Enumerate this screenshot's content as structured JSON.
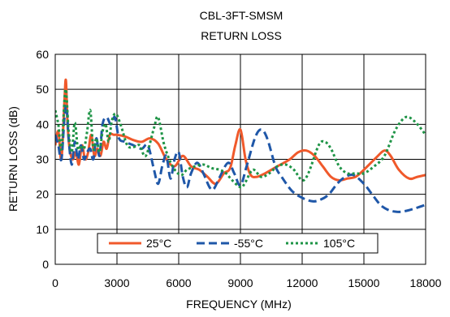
{
  "chart_data": {
    "type": "line",
    "title": "CBL-3FT-SMSM",
    "subtitle": "RETURN LOSS",
    "xlabel": "FREQUENCY (MHz)",
    "ylabel": "RETURN LOSS (dB)",
    "xlim": [
      0,
      18000
    ],
    "ylim": [
      0,
      60
    ],
    "x_ticks": [
      "0",
      "3000",
      "6000",
      "9000",
      "12000",
      "15000",
      "18000"
    ],
    "y_ticks": [
      "0",
      "10",
      "20",
      "30",
      "40",
      "50",
      "60"
    ],
    "grid": true,
    "legend_position": "bottom-inside",
    "series": [
      {
        "name": "25°C",
        "color": "#f0592b",
        "dash": "solid",
        "points": [
          [
            0,
            34
          ],
          [
            150,
            38
          ],
          [
            300,
            30
          ],
          [
            450,
            47
          ],
          [
            520,
            52.5
          ],
          [
            600,
            40
          ],
          [
            700,
            33
          ],
          [
            850,
            30
          ],
          [
            1000,
            32
          ],
          [
            1150,
            28.5
          ],
          [
            1300,
            34
          ],
          [
            1450,
            30
          ],
          [
            1600,
            32
          ],
          [
            1750,
            37
          ],
          [
            1900,
            31
          ],
          [
            2050,
            33
          ],
          [
            2200,
            31
          ],
          [
            2350,
            35
          ],
          [
            2500,
            33
          ],
          [
            2650,
            37
          ],
          [
            2850,
            37
          ],
          [
            3000,
            37
          ],
          [
            3400,
            36.5
          ],
          [
            3800,
            35.5
          ],
          [
            4200,
            35
          ],
          [
            4600,
            36
          ],
          [
            5000,
            34.5
          ],
          [
            5400,
            30
          ],
          [
            5800,
            28
          ],
          [
            6200,
            31
          ],
          [
            6600,
            28
          ],
          [
            7000,
            27
          ],
          [
            7400,
            25
          ],
          [
            7800,
            23
          ],
          [
            8200,
            26
          ],
          [
            8500,
            27.5
          ],
          [
            8750,
            34
          ],
          [
            9000,
            38.5
          ],
          [
            9250,
            30
          ],
          [
            9500,
            25.5
          ],
          [
            9800,
            25
          ],
          [
            10200,
            26
          ],
          [
            10800,
            28
          ],
          [
            11400,
            30
          ],
          [
            11800,
            32
          ],
          [
            12200,
            32.5
          ],
          [
            12600,
            31
          ],
          [
            13000,
            28
          ],
          [
            13400,
            25
          ],
          [
            13800,
            24
          ],
          [
            14200,
            24.5
          ],
          [
            14600,
            25
          ],
          [
            15000,
            27
          ],
          [
            15600,
            30.5
          ],
          [
            16000,
            32.5
          ],
          [
            16300,
            31
          ],
          [
            16700,
            27
          ],
          [
            17200,
            24.5
          ],
          [
            17600,
            25
          ],
          [
            18000,
            25.5
          ]
        ]
      },
      {
        "name": "-55°C",
        "color": "#1f57a8",
        "dash": "long-dash",
        "points": [
          [
            0,
            37
          ],
          [
            150,
            34
          ],
          [
            300,
            30
          ],
          [
            450,
            42
          ],
          [
            550,
            45
          ],
          [
            650,
            36
          ],
          [
            800,
            28.5
          ],
          [
            950,
            35
          ],
          [
            1100,
            30
          ],
          [
            1250,
            34
          ],
          [
            1400,
            30
          ],
          [
            1550,
            32
          ],
          [
            1700,
            33
          ],
          [
            1850,
            30
          ],
          [
            2000,
            36
          ],
          [
            2150,
            31
          ],
          [
            2300,
            40
          ],
          [
            2500,
            42
          ],
          [
            2700,
            40
          ],
          [
            2900,
            42
          ],
          [
            3100,
            36
          ],
          [
            3400,
            35
          ],
          [
            3800,
            34
          ],
          [
            4200,
            33
          ],
          [
            4500,
            34
          ],
          [
            4800,
            27
          ],
          [
            5000,
            23
          ],
          [
            5200,
            28
          ],
          [
            5400,
            31
          ],
          [
            5600,
            24.5
          ],
          [
            5800,
            30
          ],
          [
            6000,
            32
          ],
          [
            6200,
            25
          ],
          [
            6400,
            22
          ],
          [
            6600,
            26
          ],
          [
            6900,
            29
          ],
          [
            7200,
            26
          ],
          [
            7500,
            22
          ],
          [
            7700,
            21.5
          ],
          [
            8000,
            25
          ],
          [
            8400,
            29
          ],
          [
            8700,
            26
          ],
          [
            9000,
            22.5
          ],
          [
            9300,
            28
          ],
          [
            9700,
            36
          ],
          [
            10000,
            38.5
          ],
          [
            10300,
            36
          ],
          [
            10700,
            28
          ],
          [
            11000,
            25
          ],
          [
            11500,
            21
          ],
          [
            12000,
            19
          ],
          [
            12500,
            18
          ],
          [
            12900,
            18.5
          ],
          [
            13300,
            20
          ],
          [
            13700,
            23
          ],
          [
            14100,
            25
          ],
          [
            14500,
            25.5
          ],
          [
            15000,
            23
          ],
          [
            15400,
            20
          ],
          [
            15800,
            17
          ],
          [
            16200,
            15.5
          ],
          [
            16600,
            15
          ],
          [
            17000,
            15.2
          ],
          [
            17500,
            16
          ],
          [
            18000,
            17
          ]
        ]
      },
      {
        "name": "105°C",
        "color": "#1e9446",
        "dash": "dotted",
        "points": [
          [
            0,
            44
          ],
          [
            150,
            40
          ],
          [
            300,
            33
          ],
          [
            500,
            50
          ],
          [
            650,
            38
          ],
          [
            800,
            32
          ],
          [
            950,
            40.5
          ],
          [
            1100,
            33
          ],
          [
            1250,
            34
          ],
          [
            1400,
            33
          ],
          [
            1550,
            38
          ],
          [
            1700,
            44
          ],
          [
            1850,
            33
          ],
          [
            2000,
            36
          ],
          [
            2150,
            32
          ],
          [
            2300,
            38
          ],
          [
            2450,
            40
          ],
          [
            2600,
            35
          ],
          [
            2750,
            41
          ],
          [
            2950,
            43
          ],
          [
            3200,
            39.5
          ],
          [
            3500,
            34
          ],
          [
            3800,
            33.5
          ],
          [
            4100,
            34
          ],
          [
            4400,
            31
          ],
          [
            4800,
            39
          ],
          [
            5000,
            42
          ],
          [
            5300,
            34
          ],
          [
            5700,
            28
          ],
          [
            6100,
            25.5
          ],
          [
            6400,
            27
          ],
          [
            6800,
            28
          ],
          [
            7200,
            28.5
          ],
          [
            7600,
            27.5
          ],
          [
            8000,
            27
          ],
          [
            8300,
            26
          ],
          [
            8600,
            24
          ],
          [
            9000,
            22
          ],
          [
            9200,
            23
          ],
          [
            9600,
            27
          ],
          [
            10000,
            25
          ],
          [
            10400,
            26
          ],
          [
            10800,
            28
          ],
          [
            11200,
            28.5
          ],
          [
            11600,
            27
          ],
          [
            12000,
            24
          ],
          [
            12300,
            26
          ],
          [
            12800,
            34
          ],
          [
            13100,
            35
          ],
          [
            13400,
            33
          ],
          [
            13800,
            28
          ],
          [
            14200,
            26
          ],
          [
            14600,
            26
          ],
          [
            15000,
            26
          ],
          [
            15500,
            28
          ],
          [
            16000,
            31
          ],
          [
            16500,
            38
          ],
          [
            16900,
            41.5
          ],
          [
            17200,
            42
          ],
          [
            17600,
            40
          ],
          [
            18000,
            37
          ]
        ]
      }
    ]
  }
}
